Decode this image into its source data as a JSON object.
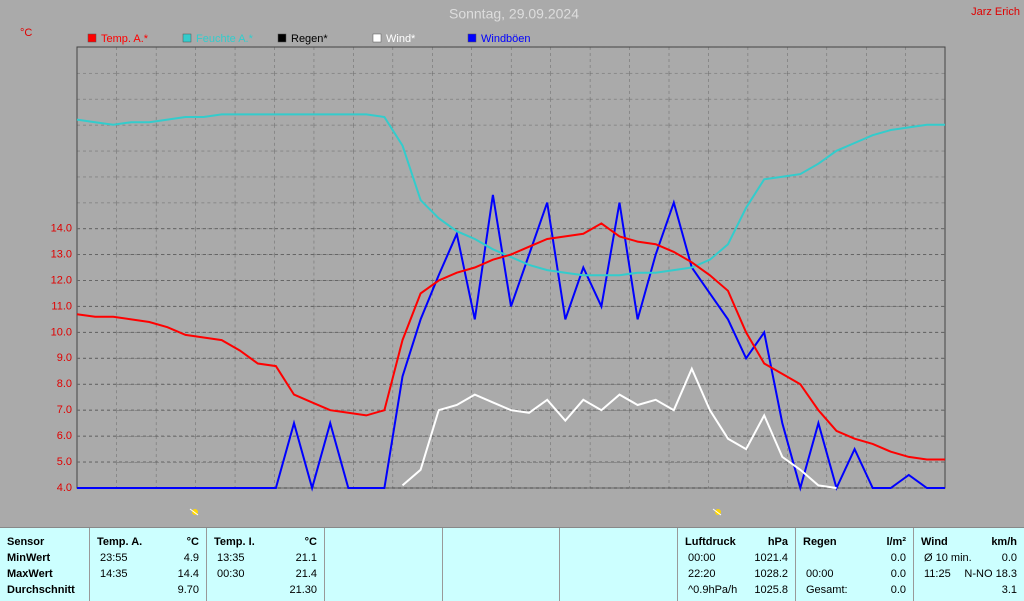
{
  "chart_data": {
    "type": "line",
    "title": "Sonntag, 29.09.2024",
    "author": "Jarz Erich",
    "y_label": "°C",
    "x": [
      0,
      0.5,
      1,
      1.5,
      2,
      2.5,
      3,
      3.5,
      4,
      4.5,
      5,
      5.5,
      6,
      6.5,
      7,
      7.5,
      8,
      8.5,
      9,
      9.5,
      10,
      10.5,
      11,
      11.5,
      12,
      12.5,
      13,
      13.5,
      14,
      14.5,
      15,
      15.5,
      16,
      16.5,
      17,
      17.5,
      18,
      18.5,
      19,
      19.5,
      20,
      20.5,
      21,
      21.5,
      22,
      22.5,
      23,
      23.5,
      24
    ],
    "xlim": [
      0,
      24
    ],
    "ylim": [
      4,
      21
    ],
    "yticks": [
      {
        "value": 4,
        "label": "4.0"
      },
      {
        "value": 5,
        "label": "5.0"
      },
      {
        "value": 6,
        "label": "6.0"
      },
      {
        "value": 7,
        "label": "7.0"
      },
      {
        "value": 8,
        "label": "8.0"
      },
      {
        "value": 9,
        "label": "9.0"
      },
      {
        "value": 10,
        "label": "10.0"
      },
      {
        "value": 11,
        "label": "11.0"
      },
      {
        "value": 12,
        "label": "12.0"
      },
      {
        "value": 13,
        "label": "13.0"
      },
      {
        "value": 14,
        "label": "14.0"
      }
    ],
    "grid": true,
    "series": [
      {
        "name": "Temp. A.*",
        "color": "#ff0000",
        "values": [
          10.7,
          10.6,
          10.6,
          10.5,
          10.4,
          10.2,
          9.9,
          9.8,
          9.7,
          9.3,
          8.8,
          8.7,
          7.6,
          7.3,
          7.0,
          6.9,
          6.8,
          7.0,
          9.7,
          11.5,
          12.0,
          12.3,
          12.5,
          12.8,
          13.0,
          13.3,
          13.6,
          13.7,
          13.8,
          14.2,
          13.7,
          13.5,
          13.4,
          13.1,
          12.7,
          12.2,
          11.6,
          10.0,
          8.8,
          8.4,
          8.0,
          7.0,
          6.2,
          5.9,
          5.7,
          5.4,
          5.2,
          5.1,
          5.1
        ]
      },
      {
        "name": "Feuchte A.*",
        "color": "#33cccc",
        "values": [
          18.2,
          18.1,
          18.0,
          18.1,
          18.1,
          18.2,
          18.3,
          18.3,
          18.4,
          18.4,
          18.4,
          18.4,
          18.4,
          18.4,
          18.4,
          18.4,
          18.4,
          18.3,
          17.2,
          15.1,
          14.4,
          13.9,
          13.6,
          13.2,
          12.9,
          12.6,
          12.4,
          12.3,
          12.2,
          12.2,
          12.2,
          12.3,
          12.3,
          12.4,
          12.5,
          12.8,
          13.4,
          14.8,
          15.9,
          16.0,
          16.1,
          16.5,
          17.0,
          17.3,
          17.6,
          17.8,
          17.9,
          18.0,
          18.0
        ]
      },
      {
        "name": "Regen*",
        "color": "#000000",
        "values": [
          null,
          null,
          null,
          null,
          null,
          null,
          null,
          null,
          null,
          null,
          null,
          null,
          null,
          null,
          null,
          null,
          null,
          null,
          null,
          null,
          null,
          null,
          null,
          null,
          null,
          null,
          null,
          null,
          null,
          null,
          null,
          null,
          null,
          null,
          null,
          null,
          null,
          null,
          null,
          null,
          null,
          null,
          null,
          null,
          null,
          null,
          null,
          null,
          null
        ]
      },
      {
        "name": "Wind*",
        "color": "#ffffff",
        "values": [
          null,
          null,
          null,
          null,
          null,
          null,
          null,
          null,
          null,
          null,
          null,
          null,
          null,
          null,
          null,
          null,
          null,
          null,
          4.1,
          4.7,
          7.0,
          7.2,
          7.6,
          7.3,
          7.0,
          6.9,
          7.4,
          6.6,
          7.4,
          7.0,
          7.6,
          7.2,
          7.4,
          7.0,
          8.6,
          7.0,
          5.9,
          5.5,
          6.8,
          5.2,
          4.7,
          4.1,
          4.0,
          null,
          null,
          null,
          null,
          null,
          null
        ]
      },
      {
        "name": "Windböen",
        "color": "#0000ff",
        "values": [
          4.0,
          4.0,
          4.0,
          4.0,
          4.0,
          4.0,
          4.0,
          4.0,
          4.0,
          4.0,
          4.0,
          4.0,
          6.5,
          4.0,
          6.5,
          4.0,
          4.0,
          4.0,
          8.3,
          10.5,
          12.2,
          13.8,
          10.5,
          15.3,
          11.0,
          13.0,
          15.0,
          10.5,
          12.5,
          11.0,
          15.0,
          10.5,
          13.0,
          15.0,
          12.5,
          11.5,
          10.5,
          9.0,
          10.0,
          6.5,
          4.0,
          6.5,
          4.0,
          5.5,
          4.0,
          4.0,
          4.5,
          4.0,
          4.0
        ]
      }
    ]
  },
  "table": {
    "sensor": [
      "Sensor",
      "MinWert",
      "MaxWert",
      "Durchschnitt"
    ],
    "sections": [
      {
        "header": [
          "Temp. A.",
          "°C"
        ],
        "rows": [
          [
            "23:55",
            "4.9"
          ],
          [
            "14:35",
            "14.4"
          ],
          [
            null,
            "9.70"
          ]
        ]
      },
      {
        "header": [
          "Temp. I.",
          "°C"
        ],
        "rows": [
          [
            "13:35",
            "21.1"
          ],
          [
            "00:30",
            "21.4"
          ],
          [
            null,
            "21.30"
          ]
        ]
      },
      {
        "header": [
          "Luftdruck",
          "hPa"
        ],
        "rows": [
          [
            "00:00",
            "1021.4"
          ],
          [
            "22:20",
            "1028.2"
          ],
          [
            "^0.9hPa/h",
            "1025.8"
          ]
        ]
      },
      {
        "header": [
          "Regen",
          "l/m²"
        ],
        "rows": [
          [
            null,
            "0.0"
          ],
          [
            "00:00",
            "0.0"
          ],
          [
            "Gesamt:",
            "0.0"
          ]
        ]
      },
      {
        "header": [
          "Wind",
          "km/h"
        ],
        "rows": [
          [
            "Ø 10 min.",
            "0.0"
          ],
          [
            "11:25",
            "N-NO 18.3"
          ],
          [
            null,
            "3.1"
          ]
        ]
      }
    ]
  }
}
